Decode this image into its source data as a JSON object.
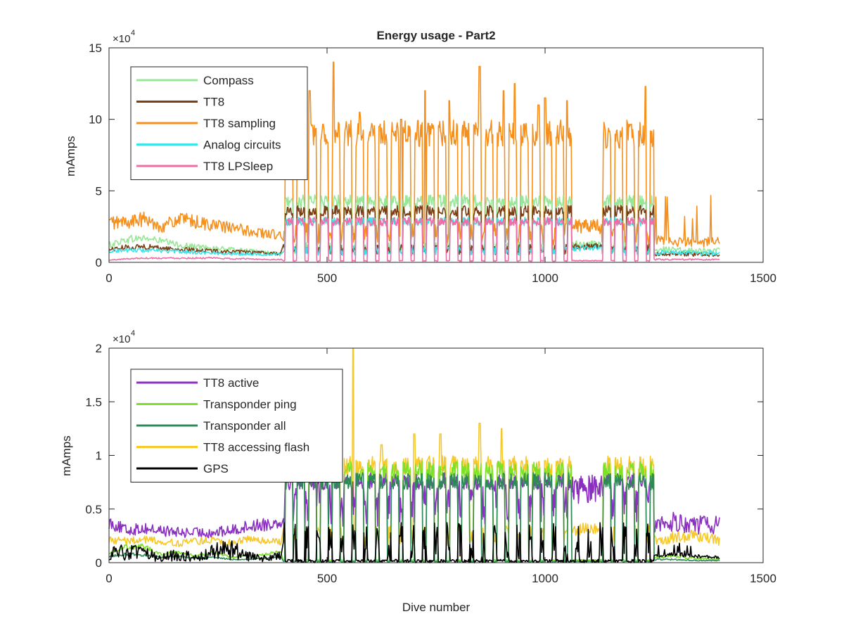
{
  "figure": {
    "background": "#ffffff"
  },
  "chart_data": [
    {
      "type": "line",
      "title": "Energy usage - Part2",
      "xlabel": "",
      "ylabel": "mAmps",
      "xlim": [
        0,
        1500
      ],
      "ylim": [
        0,
        150000
      ],
      "exponent_label": "×10",
      "exponent_power": "4",
      "x_ticks": [
        0,
        500,
        1000,
        1500
      ],
      "x_tick_labels": [
        "0",
        "500",
        "1000",
        "1500"
      ],
      "y_ticks": [
        0,
        50000,
        100000,
        150000
      ],
      "y_tick_labels": [
        "0",
        "5",
        "10",
        "15"
      ],
      "grid": false,
      "legend_position": "top-left",
      "series": [
        {
          "name": "Compass",
          "color": "#98e698",
          "key": "compass"
        },
        {
          "name": "TT8",
          "color": "#7a3f14",
          "key": "tt8"
        },
        {
          "name": "TT8 sampling",
          "color": "#f5901e",
          "key": "tt8_sampling"
        },
        {
          "name": "Analog circuits",
          "color": "#3ce3e8",
          "key": "analog"
        },
        {
          "name": "TT8 LPSleep",
          "color": "#ee6fa8",
          "key": "lpsleep"
        }
      ],
      "segments": [
        {
          "x": [
            0,
            40,
            80,
            120,
            160,
            200,
            240,
            280,
            320,
            360,
            395
          ],
          "key": "early"
        },
        {
          "x": [
            400,
            1250
          ],
          "key": "dives"
        },
        {
          "x": [
            1250,
            1300,
            1350,
            1400
          ],
          "key": "late"
        }
      ],
      "levels": {
        "compass": {
          "early": [
            12000,
            16000,
            17000,
            15000,
            12000,
            11000,
            10000,
            9000,
            8000,
            7000,
            6000
          ],
          "dive_peak": 45000,
          "dive_base": 10000,
          "late": [
            9000,
            9000,
            8000,
            8000
          ]
        },
        "tt8": {
          "early": [
            9000,
            10500,
            11000,
            10000,
            9000,
            8500,
            8000,
            7500,
            7000,
            6500,
            6000
          ],
          "dive_peak": 38000,
          "dive_base": 9000,
          "late": [
            6000,
            6000,
            5500,
            5500
          ]
        },
        "tt8_sampling": {
          "early": [
            28000,
            28000,
            30000,
            25000,
            30000,
            28000,
            26000,
            24000,
            22000,
            20000,
            19000
          ],
          "dive_peak": 95000,
          "dive_base": 20000,
          "late": [
            15000,
            14000,
            14000,
            15000
          ]
        },
        "analog": {
          "early": [
            8000,
            8500,
            8500,
            8000,
            7500,
            7000,
            6500,
            6000,
            6000,
            5500,
            5500
          ],
          "dive_peak": 30000,
          "dive_base": 8000,
          "late": [
            7000,
            7000,
            6500,
            6500
          ]
        },
        "lpsleep": {
          "early": [
            1500,
            2500,
            3000,
            3000,
            3000,
            3000,
            3000,
            2500,
            2500,
            2000,
            2000
          ],
          "dive_peak": 30000,
          "dive_base": 1000,
          "late": [
            2000,
            2000,
            2000,
            2000
          ]
        }
      },
      "dive_spikes": {
        "x": [
          410,
          460,
          515,
          575,
          620,
          670,
          725,
          780,
          850,
          905,
          930,
          985,
          1000,
          1050,
          1140,
          1170,
          1230
        ],
        "tt8_sampling": [
          110000,
          120000,
          140000,
          105000,
          95000,
          100000,
          120000,
          113000,
          137000,
          120000,
          125000,
          110000,
          115000,
          113000,
          80000,
          80000,
          123000
        ]
      }
    },
    {
      "type": "line",
      "title": "",
      "xlabel": "Dive number",
      "ylabel": "mAmps",
      "xlim": [
        0,
        1500
      ],
      "ylim": [
        0,
        20000
      ],
      "exponent_label": "×10",
      "exponent_power": "4",
      "x_ticks": [
        0,
        500,
        1000,
        1500
      ],
      "x_tick_labels": [
        "0",
        "500",
        "1000",
        "1500"
      ],
      "y_ticks": [
        0,
        5000,
        10000,
        15000,
        20000
      ],
      "y_tick_labels": [
        "0",
        "0.5",
        "1",
        "1.5",
        "2"
      ],
      "grid": false,
      "legend_position": "top-left",
      "series": [
        {
          "name": "TT8 active",
          "color": "#8a2fbf",
          "key": "tt8_active"
        },
        {
          "name": "Transponder ping",
          "color": "#7ee02a",
          "key": "ping"
        },
        {
          "name": "Transponder all",
          "color": "#2e8b57",
          "key": "all"
        },
        {
          "name": "TT8 accessing flash",
          "color": "#f7c82a",
          "key": "flash"
        },
        {
          "name": "GPS",
          "color": "#000000",
          "key": "gps"
        }
      ],
      "segments": [
        {
          "x": [
            0,
            40,
            80,
            120,
            160,
            200,
            240,
            280,
            320,
            360,
            395
          ],
          "key": "early"
        },
        {
          "x": [
            400,
            1250
          ],
          "key": "dives"
        },
        {
          "x": [
            1250,
            1300,
            1350,
            1400
          ],
          "key": "late"
        }
      ],
      "levels": {
        "tt8_active": {
          "early": [
            3800,
            3000,
            3200,
            3000,
            2800,
            2800,
            2800,
            3000,
            3400,
            3600,
            3800
          ],
          "dive_peak": 8000,
          "dive_base": 5500,
          "late": [
            3500,
            3800,
            3500,
            3500
          ]
        },
        "ping": {
          "early": [
            1000,
            1500,
            1500,
            800,
            1000,
            600,
            1000,
            500,
            600,
            800,
            1000
          ],
          "dive_peak": 9000,
          "dive_base": 200,
          "late": [
            500,
            600,
            400,
            300
          ]
        },
        "all": {
          "early": [
            600,
            800,
            700,
            500,
            600,
            400,
            500,
            300,
            300,
            400,
            500
          ],
          "dive_peak": 8000,
          "dive_base": 100,
          "late": [
            300,
            300,
            200,
            200
          ]
        },
        "flash": {
          "early": [
            2200,
            2000,
            2200,
            2000,
            1800,
            2000,
            2200,
            1800,
            2200,
            2000,
            2000
          ],
          "dive_peak": 9500,
          "dive_base": 2500,
          "late": [
            2000,
            2500,
            2500,
            2000
          ]
        },
        "gps": {
          "early": [
            800,
            1000,
            800,
            500,
            800,
            400,
            1000,
            1200,
            600,
            400,
            600
          ],
          "dive_peak": 1500,
          "dive_base": 300,
          "late": [
            600,
            800,
            600,
            500
          ]
        }
      },
      "dive_spikes": {
        "x": [
          420,
          470,
          560,
          625,
          700,
          760,
          850,
          900,
          1000,
          1140,
          1230
        ],
        "flash": [
          10000,
          11000,
          20000,
          11000,
          12000,
          12000,
          13000,
          12500,
          9500,
          8500,
          9000
        ]
      }
    }
  ]
}
